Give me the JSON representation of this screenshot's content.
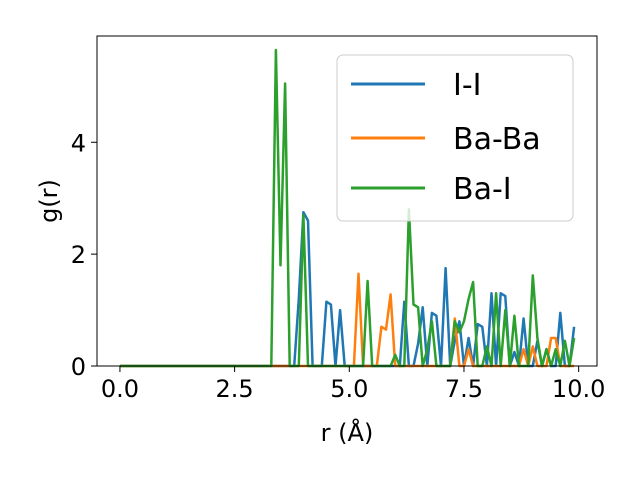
{
  "chart_data": {
    "type": "line",
    "title": "",
    "xlabel": "r (Å)",
    "ylabel": "g(r)",
    "xlim": [
      -0.5,
      10.4
    ],
    "ylim": [
      0,
      5.9
    ],
    "xticks": [
      0.0,
      2.5,
      5.0,
      7.5,
      10.0
    ],
    "xtick_labels": [
      "0.0",
      "2.5",
      "5.0",
      "7.5",
      "10.0"
    ],
    "yticks": [
      0,
      2,
      4
    ],
    "ytick_labels": [
      "0",
      "2",
      "4"
    ],
    "grid": false,
    "legend": {
      "position": "top-right"
    },
    "series": [
      {
        "name": "I-I",
        "color": "#1f77b4",
        "x": [
          0.0,
          3.8,
          3.9,
          4.0,
          4.1,
          4.2,
          4.3,
          4.4,
          4.5,
          4.6,
          4.7,
          4.8,
          4.9,
          5.0,
          5.1,
          5.2,
          5.3,
          5.4,
          5.5,
          5.6,
          5.7,
          5.8,
          5.9,
          6.0,
          6.1,
          6.2,
          6.3,
          6.4,
          6.5,
          6.6,
          6.7,
          6.8,
          6.9,
          7.0,
          7.1,
          7.2,
          7.3,
          7.4,
          7.5,
          7.6,
          7.7,
          7.8,
          7.9,
          8.0,
          8.1,
          8.2,
          8.3,
          8.4,
          8.5,
          8.6,
          8.7,
          8.8,
          8.9,
          9.0,
          9.1,
          9.2,
          9.3,
          9.4,
          9.5,
          9.6,
          9.7,
          9.8,
          9.9
        ],
        "values": [
          0,
          0,
          1.2,
          2.75,
          2.6,
          0,
          0,
          0,
          1.15,
          1.1,
          0,
          1.0,
          0,
          0,
          0,
          0,
          0,
          0,
          0,
          0,
          0,
          0,
          0,
          0,
          0,
          1.15,
          0,
          0,
          0.4,
          1.05,
          0,
          0.95,
          0.9,
          0,
          1.75,
          0,
          0.45,
          0.8,
          0,
          0.5,
          0,
          0.75,
          0.7,
          0,
          1.3,
          0,
          1.3,
          1.25,
          0,
          0.25,
          0,
          0.85,
          0,
          0,
          0.45,
          0,
          0.3,
          0,
          0,
          0.95,
          0,
          0,
          0.7
        ]
      },
      {
        "name": "Ba-Ba",
        "color": "#ff7f0e",
        "x": [
          0.0,
          5.1,
          5.2,
          5.3,
          5.6,
          5.7,
          5.8,
          5.9,
          6.0,
          6.1,
          6.2,
          6.3,
          7.2,
          7.3,
          7.4,
          7.5,
          7.6,
          7.7,
          7.8,
          8.7,
          8.8,
          8.9,
          9.0,
          9.1,
          9.2,
          9.3,
          9.4,
          9.5,
          9.6,
          9.7,
          9.8,
          9.9
        ],
        "values": [
          0,
          0,
          1.65,
          0,
          0,
          0.7,
          0.65,
          1.28,
          0,
          0,
          0,
          0,
          0,
          0.85,
          0,
          0,
          0.3,
          0,
          0,
          0,
          0.3,
          0,
          0.35,
          0,
          0,
          0,
          0.5,
          0.5,
          0,
          0,
          0,
          0
        ]
      },
      {
        "name": "Ba-I",
        "color": "#2ca02c",
        "x": [
          0.0,
          3.3,
          3.4,
          3.5,
          3.6,
          3.7,
          3.8,
          3.9,
          4.0,
          4.1,
          5.1,
          5.2,
          5.3,
          5.4,
          5.5,
          5.9,
          6.0,
          6.1,
          6.2,
          6.3,
          6.4,
          6.5,
          6.6,
          6.7,
          6.8,
          6.9,
          7.0,
          7.1,
          7.2,
          7.3,
          7.4,
          7.5,
          7.6,
          7.7,
          7.8,
          7.9,
          8.0,
          8.1,
          8.2,
          8.3,
          8.4,
          8.5,
          8.6,
          8.7,
          8.8,
          8.9,
          9.0,
          9.1,
          9.2,
          9.3,
          9.4,
          9.5,
          9.6,
          9.7,
          9.8,
          9.9
        ],
        "values": [
          0,
          0,
          5.65,
          1.8,
          5.05,
          0,
          0,
          0,
          2.7,
          0,
          0,
          0,
          0,
          1.52,
          0,
          0,
          0.2,
          0,
          0,
          2.8,
          1.1,
          1.05,
          0,
          0.3,
          0.8,
          0,
          0,
          0,
          0,
          0.8,
          0.6,
          0.8,
          1.2,
          1.5,
          0,
          0,
          0.35,
          0,
          1.3,
          0,
          1.0,
          0,
          0.9,
          0,
          0,
          0,
          1.62,
          0.5,
          0,
          0.3,
          0,
          0.3,
          0,
          0.45,
          0,
          0.5
        ]
      }
    ]
  }
}
